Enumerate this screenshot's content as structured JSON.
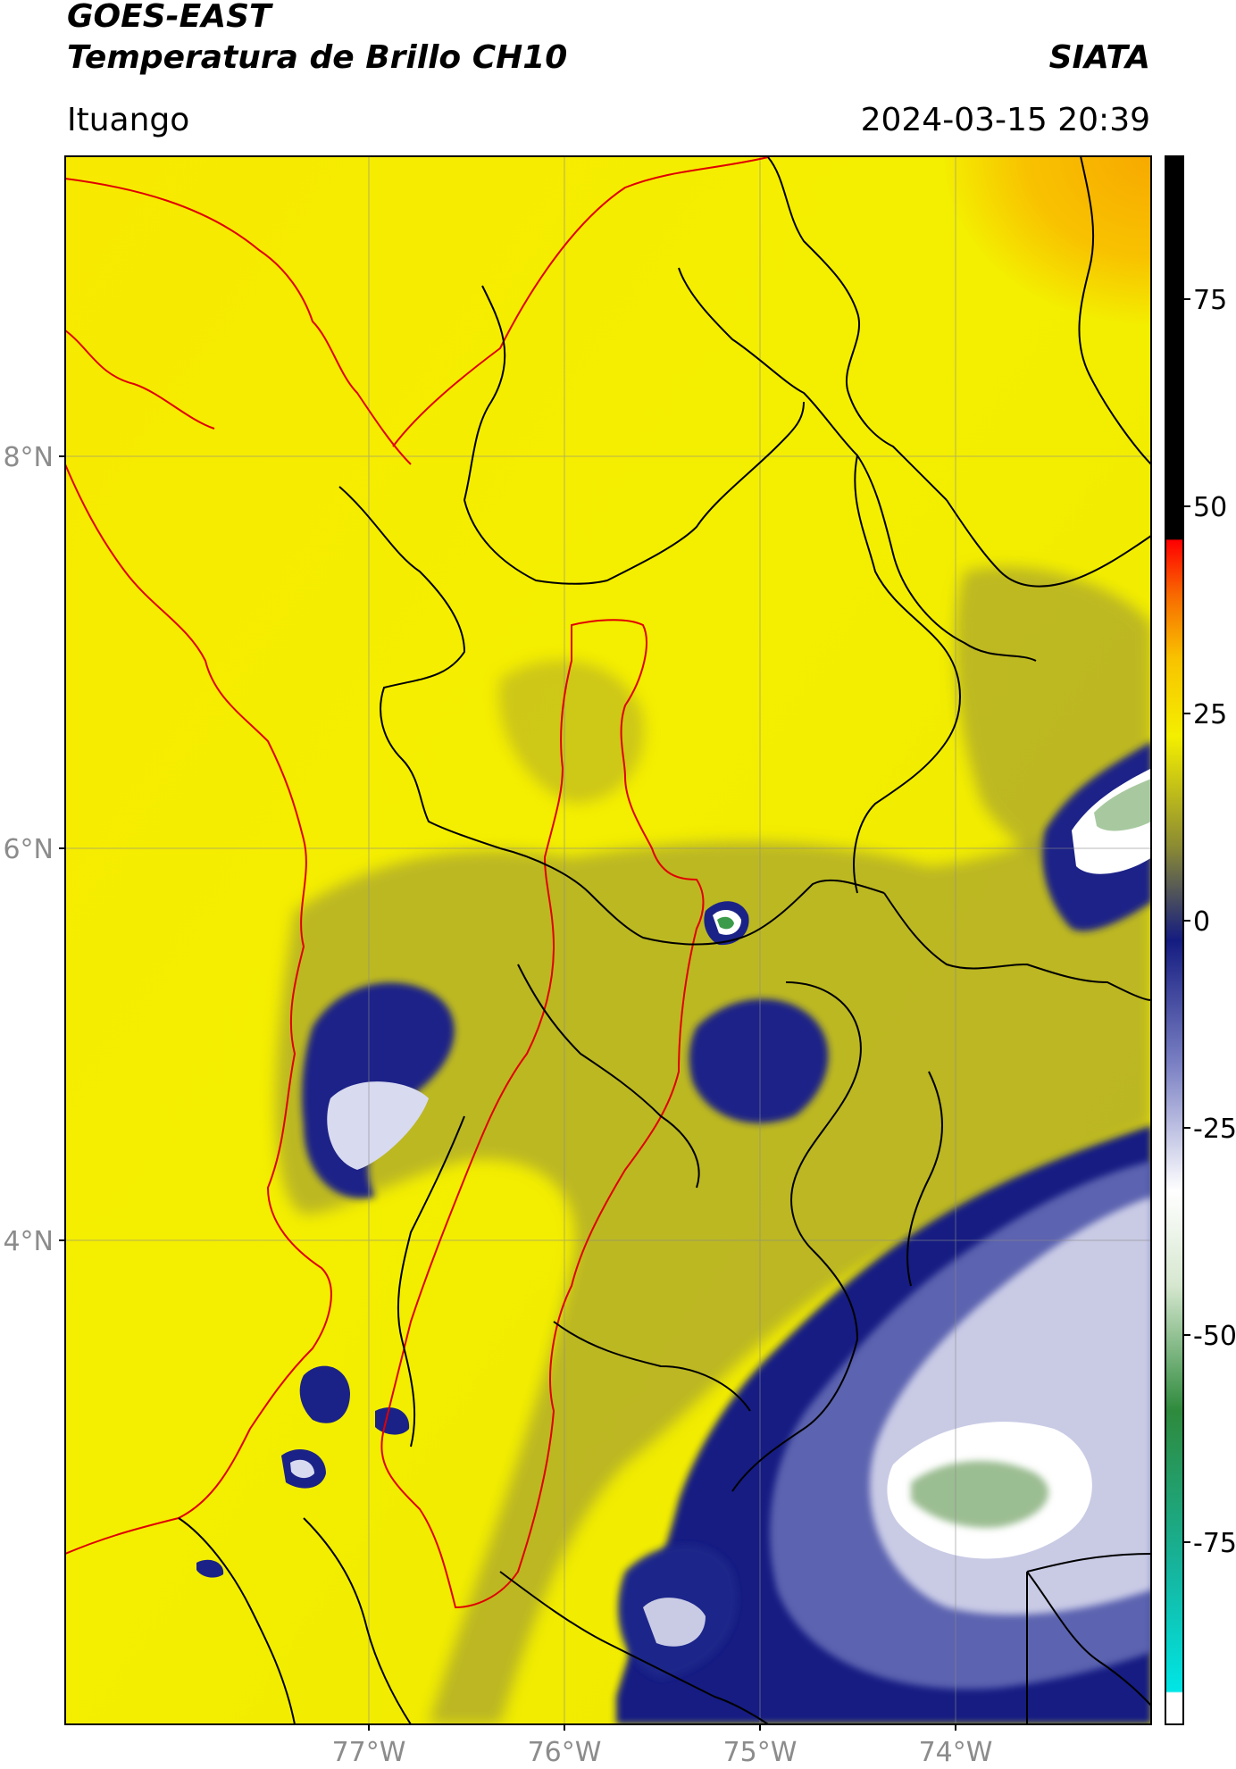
{
  "header": {
    "satellite": "GOES-EAST",
    "product": "Temperatura de Brillo CH10",
    "brand": "SIATA",
    "region": "Ituango",
    "timestamp": "2024-03-15 20:39"
  },
  "map": {
    "lat_ticks": [
      "8°N",
      "6°N",
      "4°N"
    ],
    "lon_ticks": [
      "77°W",
      "76°W",
      "75°W",
      "74°W"
    ],
    "lat_values": [
      8,
      6,
      4
    ],
    "lon_values": [
      -77,
      -76,
      -75,
      -74
    ]
  },
  "colorbar": {
    "tick_values": [
      75,
      50,
      25,
      0,
      -25,
      -50,
      -75
    ],
    "tick_labels": [
      "75",
      "50",
      "25",
      "0",
      "-25",
      "-50",
      "-75"
    ]
  },
  "colors": {
    "warm_background": "#f4ef00",
    "orange_tone": "#f8b800",
    "olive_tone": "#a7a72e",
    "cold_navy": "#1b2287",
    "cold_white": "#ffffff",
    "cold_green": "#3c9b4a",
    "border_black": "#000000",
    "border_red": "#e00000"
  }
}
